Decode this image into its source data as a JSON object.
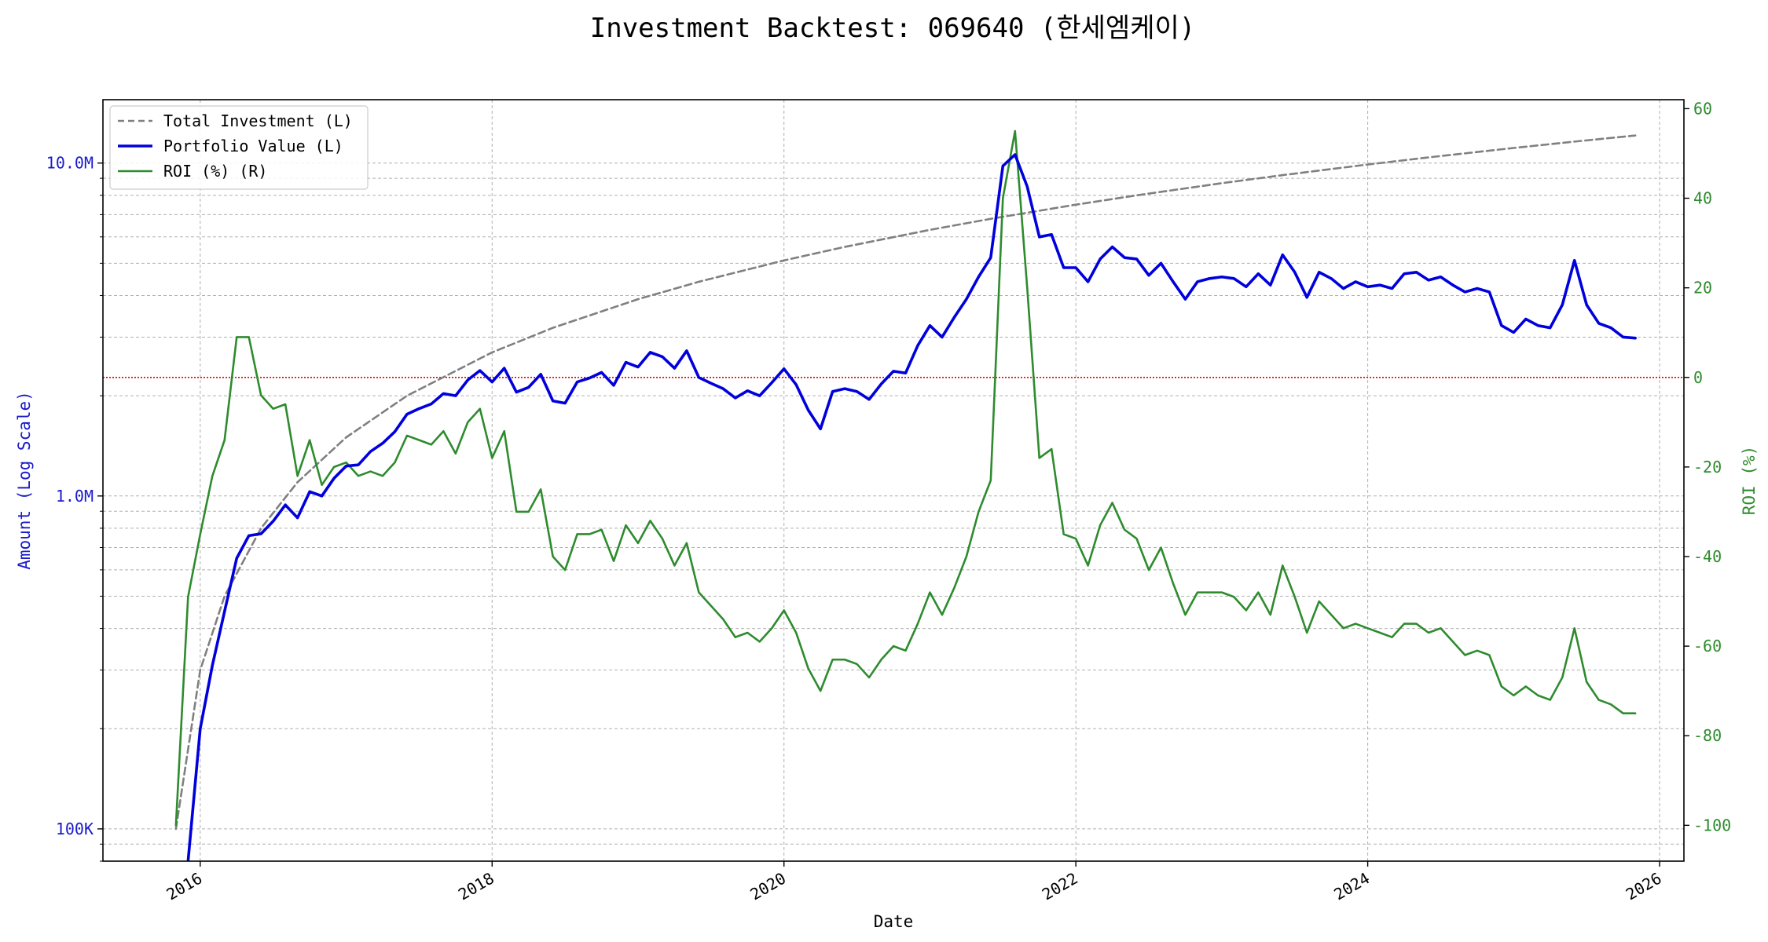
{
  "chart_data": {
    "type": "line",
    "title": "Investment Backtest: 069640 (한세엠케이)",
    "xlabel": "Date",
    "ylabel_left": "Amount (Log Scale)",
    "ylabel_right": "ROI (%)",
    "x_ticks": [
      "2016",
      "2018",
      "2020",
      "2022",
      "2024",
      "2026"
    ],
    "y_left_ticks": [
      "100K",
      "1.0M",
      "10.0M"
    ],
    "y_right_ticks": [
      "60",
      "40",
      "20",
      "0",
      "-20",
      "-40",
      "-60",
      "-80",
      "-100"
    ],
    "y_left_scale": "log",
    "y_left_range": [
      80000,
      15500000
    ],
    "y_right_range": [
      -108,
      62
    ],
    "x_range": [
      "2015-05-01",
      "2026-03-01"
    ],
    "grid": true,
    "legend_position": "upper-left",
    "colors": {
      "total_investment": "#808080",
      "portfolio_value": "#0000dd",
      "roi": "#2e8b2e",
      "zero_line": "#dd0000",
      "left_axis_text": "#1a1acc",
      "right_axis_text": "#2e8b2e"
    },
    "series": [
      {
        "name": "Total Investment (L)",
        "axis": "left",
        "style": "dashed",
        "x": [
          "2015-11",
          "2016-01",
          "2016-03",
          "2016-06",
          "2016-09",
          "2017-01",
          "2017-06",
          "2018-01",
          "2018-06",
          "2019-01",
          "2019-06",
          "2020-01",
          "2020-06",
          "2021-01",
          "2021-06",
          "2022-01",
          "2022-06",
          "2023-01",
          "2023-06",
          "2024-01",
          "2024-06",
          "2025-01",
          "2025-06",
          "2025-11"
        ],
        "values": [
          100000,
          300000,
          500000,
          800000,
          1100000,
          1500000,
          2000000,
          2700000,
          3200000,
          3900000,
          4400000,
          5100000,
          5600000,
          6300000,
          6800000,
          7500000,
          8000000,
          8700000,
          9200000,
          9900000,
          10400000,
          11100000,
          11600000,
          12100000
        ]
      },
      {
        "name": "Portfolio Value (L)",
        "axis": "left",
        "style": "solid",
        "x": [
          "2015-12",
          "2016-01",
          "2016-02",
          "2016-03",
          "2016-04",
          "2016-05",
          "2016-06",
          "2016-07",
          "2016-08",
          "2016-09",
          "2016-10",
          "2016-11",
          "2016-12",
          "2017-01",
          "2017-02",
          "2017-03",
          "2017-04",
          "2017-05",
          "2017-06",
          "2017-07",
          "2017-08",
          "2017-09",
          "2017-10",
          "2017-11",
          "2017-12",
          "2018-01",
          "2018-02",
          "2018-03",
          "2018-04",
          "2018-05",
          "2018-06",
          "2018-07",
          "2018-08",
          "2018-09",
          "2018-10",
          "2018-11",
          "2018-12",
          "2019-01",
          "2019-02",
          "2019-03",
          "2019-04",
          "2019-05",
          "2019-06",
          "2019-07",
          "2019-08",
          "2019-09",
          "2019-10",
          "2019-11",
          "2019-12",
          "2020-01",
          "2020-02",
          "2020-03",
          "2020-04",
          "2020-05",
          "2020-06",
          "2020-07",
          "2020-08",
          "2020-09",
          "2020-10",
          "2020-11",
          "2020-12",
          "2021-01",
          "2021-02",
          "2021-03",
          "2021-04",
          "2021-05",
          "2021-06",
          "2021-07",
          "2021-08",
          "2021-09",
          "2021-10",
          "2021-11",
          "2021-12",
          "2022-01",
          "2022-02",
          "2022-03",
          "2022-04",
          "2022-05",
          "2022-06",
          "2022-07",
          "2022-08",
          "2022-09",
          "2022-10",
          "2022-11",
          "2022-12",
          "2023-01",
          "2023-02",
          "2023-03",
          "2023-04",
          "2023-05",
          "2023-06",
          "2023-07",
          "2023-08",
          "2023-09",
          "2023-10",
          "2023-11",
          "2023-12",
          "2024-01",
          "2024-02",
          "2024-03",
          "2024-04",
          "2024-05",
          "2024-06",
          "2024-07",
          "2024-08",
          "2024-09",
          "2024-10",
          "2024-11",
          "2024-12",
          "2025-01",
          "2025-02",
          "2025-03",
          "2025-04",
          "2025-05",
          "2025-06",
          "2025-07",
          "2025-08",
          "2025-09",
          "2025-10",
          "2025-11"
        ],
        "values": [
          80000,
          200000,
          310000,
          450000,
          650000,
          760000,
          770000,
          840000,
          940000,
          860000,
          1030000,
          1000000,
          1130000,
          1230000,
          1240000,
          1360000,
          1440000,
          1560000,
          1760000,
          1830000,
          1890000,
          2030000,
          2000000,
          2230000,
          2380000,
          2200000,
          2420000,
          2050000,
          2120000,
          2320000,
          1930000,
          1900000,
          2200000,
          2260000,
          2350000,
          2150000,
          2520000,
          2440000,
          2700000,
          2620000,
          2420000,
          2730000,
          2270000,
          2180000,
          2100000,
          1970000,
          2070000,
          2000000,
          2190000,
          2410000,
          2160000,
          1810000,
          1590000,
          2060000,
          2100000,
          2060000,
          1950000,
          2170000,
          2370000,
          2340000,
          2830000,
          3250000,
          3000000,
          3440000,
          3900000,
          4550000,
          5200000,
          9800000,
          10600000,
          8500000,
          6000000,
          6100000,
          4850000,
          4850000,
          4400000,
          5150000,
          5600000,
          5200000,
          5150000,
          4600000,
          5000000,
          4400000,
          3900000,
          4400000,
          4500000,
          4550000,
          4500000,
          4250000,
          4650000,
          4300000,
          5300000,
          4700000,
          3950000,
          4700000,
          4500000,
          4200000,
          4400000,
          4250000,
          4300000,
          4200000,
          4650000,
          4700000,
          4450000,
          4550000,
          4300000,
          4100000,
          4200000,
          4100000,
          3250000,
          3100000,
          3400000,
          3250000,
          3200000,
          3750000,
          5100000,
          3750000,
          3300000,
          3200000,
          3000000,
          2980000
        ]
      },
      {
        "name": "ROI (%) (R)",
        "axis": "right",
        "style": "solid",
        "x": [
          "2015-11",
          "2015-12",
          "2016-01",
          "2016-02",
          "2016-03",
          "2016-04",
          "2016-05",
          "2016-06",
          "2016-07",
          "2016-08",
          "2016-09",
          "2016-10",
          "2016-11",
          "2016-12",
          "2017-01",
          "2017-02",
          "2017-03",
          "2017-04",
          "2017-05",
          "2017-06",
          "2017-07",
          "2017-08",
          "2017-09",
          "2017-10",
          "2017-11",
          "2017-12",
          "2018-01",
          "2018-02",
          "2018-03",
          "2018-04",
          "2018-05",
          "2018-06",
          "2018-07",
          "2018-08",
          "2018-09",
          "2018-10",
          "2018-11",
          "2018-12",
          "2019-01",
          "2019-02",
          "2019-03",
          "2019-04",
          "2019-05",
          "2019-06",
          "2019-07",
          "2019-08",
          "2019-09",
          "2019-10",
          "2019-11",
          "2019-12",
          "2020-01",
          "2020-02",
          "2020-03",
          "2020-04",
          "2020-05",
          "2020-06",
          "2020-07",
          "2020-08",
          "2020-09",
          "2020-10",
          "2020-11",
          "2020-12",
          "2021-01",
          "2021-02",
          "2021-03",
          "2021-04",
          "2021-05",
          "2021-06",
          "2021-07",
          "2021-08",
          "2021-09",
          "2021-10",
          "2021-11",
          "2021-12",
          "2022-01",
          "2022-02",
          "2022-03",
          "2022-04",
          "2022-05",
          "2022-06",
          "2022-07",
          "2022-08",
          "2022-09",
          "2022-10",
          "2022-11",
          "2022-12",
          "2023-01",
          "2023-02",
          "2023-03",
          "2023-04",
          "2023-05",
          "2023-06",
          "2023-07",
          "2023-08",
          "2023-09",
          "2023-10",
          "2023-11",
          "2023-12",
          "2024-01",
          "2024-02",
          "2024-03",
          "2024-04",
          "2024-05",
          "2024-06",
          "2024-07",
          "2024-08",
          "2024-09",
          "2024-10",
          "2024-11",
          "2024-12",
          "2025-01",
          "2025-02",
          "2025-03",
          "2025-04",
          "2025-05",
          "2025-06",
          "2025-07",
          "2025-08",
          "2025-09",
          "2025-10",
          "2025-11"
        ],
        "values": [
          -100,
          -49,
          -35,
          -22,
          -14,
          9,
          9,
          -4,
          -7,
          -6,
          -22,
          -14,
          -24,
          -20,
          -19,
          -22,
          -21,
          -22,
          -19,
          -13,
          -14,
          -15,
          -12,
          -17,
          -10,
          -7,
          -18,
          -12,
          -30,
          -30,
          -25,
          -40,
          -43,
          -35,
          -35,
          -34,
          -41,
          -33,
          -37,
          -32,
          -36,
          -42,
          -37,
          -48,
          -51,
          -54,
          -58,
          -57,
          -59,
          -56,
          -52,
          -57,
          -65,
          -70,
          -63,
          -63,
          -64,
          -67,
          -63,
          -60,
          -61,
          -55,
          -48,
          -53,
          -47,
          -40,
          -30,
          -23,
          40,
          55,
          20,
          -18,
          -16,
          -35,
          -36,
          -42,
          -33,
          -28,
          -34,
          -36,
          -43,
          -38,
          -46,
          -53,
          -48,
          -48,
          -48,
          -49,
          -52,
          -48,
          -53,
          -42,
          -49,
          -57,
          -50,
          -53,
          -56,
          -55,
          -56,
          -57,
          -58,
          -55,
          -55,
          -57,
          -56,
          -59,
          -62,
          -61,
          -62,
          -69,
          -71,
          -69,
          -71,
          -72,
          -67,
          -56,
          -68,
          -72,
          -73,
          -75,
          -75
        ]
      }
    ]
  }
}
